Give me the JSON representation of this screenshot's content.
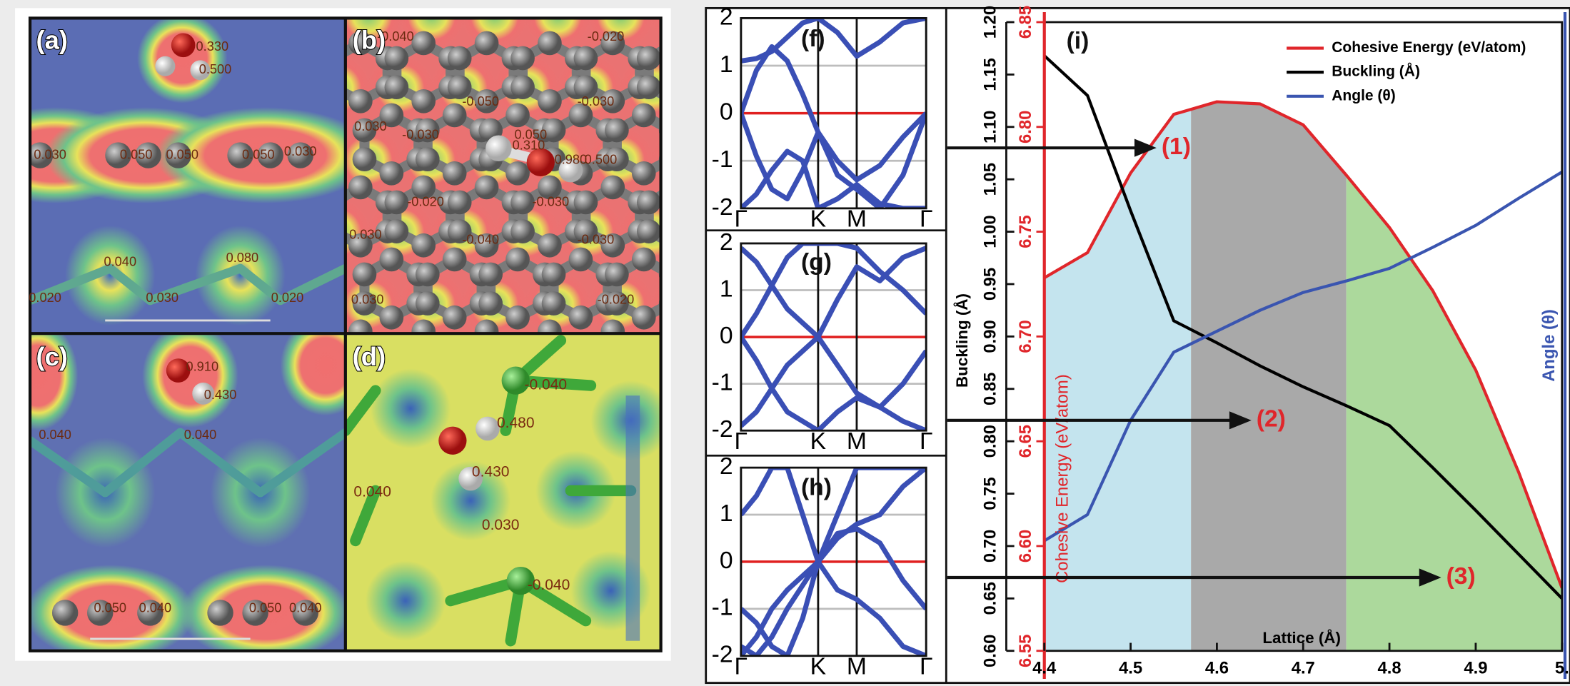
{
  "panels": [
    {
      "label": "(a)",
      "numbers": [
        "0.330",
        "0.500",
        "0.030",
        "0.050",
        "0.050",
        "0.050",
        "0.030",
        "0.040",
        "0.080",
        "0.020",
        "0.030",
        "0.020"
      ]
    },
    {
      "label": "(b)",
      "numbers": [
        "-0.040",
        "-0.020",
        "-0.050",
        "-0.030",
        "0.030",
        "-0.030",
        "0.050",
        "0.310",
        "0.980",
        "0.500",
        "-0.020",
        "-0.030",
        "-0.040",
        "-0.030",
        "0.030",
        "0.030",
        "-0.020"
      ]
    },
    {
      "label": "(c)",
      "numbers": [
        "0.910",
        "0.430",
        "0.040",
        "0.040",
        "0.050",
        "0.040",
        "0.050",
        "0.040"
      ]
    },
    {
      "label": "(d)",
      "numbers": [
        "-0.040",
        "0.480",
        "0.430",
        "0.040",
        "0.030",
        "-0.040"
      ]
    }
  ],
  "chart_data": [
    {
      "type": "line",
      "label": "(f)",
      "x": [
        0,
        0.2,
        0.4,
        0.6,
        0.8,
        1,
        1.25,
        1.5,
        1.8,
        2.1,
        2.4
      ],
      "xlim": [
        0,
        2.4
      ],
      "xticks": [
        {
          "value": 0,
          "label": "Γ"
        },
        {
          "value": 1,
          "label": "K"
        },
        {
          "value": 1.5,
          "label": "M"
        },
        {
          "value": 2.4,
          "label": "Γ"
        }
      ],
      "ylim": [
        -2,
        2
      ],
      "yticks": [
        -2,
        -1,
        0,
        1,
        2
      ],
      "grid": true,
      "zero_line_color": "#e02020",
      "series": [
        {
          "color": "#3a4fb5",
          "values": [
            0,
            -0.9,
            -1.6,
            -1.8,
            -1.2,
            -0.4,
            -1.0,
            -1.4,
            -1.1,
            -0.5,
            0
          ]
        },
        {
          "color": "#3a4fb5",
          "values": [
            0,
            0.9,
            1.4,
            1.1,
            0.4,
            -0.4,
            -1.3,
            -1.6,
            -2,
            -1.3,
            0
          ]
        },
        {
          "color": "#3a4fb5",
          "values": [
            1.1,
            1.15,
            1.3,
            1.6,
            1.9,
            2,
            1.7,
            1.2,
            1.5,
            1.9,
            2
          ]
        },
        {
          "color": "#3a4fb5",
          "values": [
            -2,
            -1.7,
            -1.2,
            -0.8,
            -1.0,
            -2,
            -1.8,
            -1.5,
            -1.9,
            -2,
            -2
          ]
        }
      ]
    },
    {
      "type": "line",
      "label": "(g)",
      "x": [
        0,
        0.2,
        0.4,
        0.6,
        0.8,
        1,
        1.25,
        1.5,
        1.8,
        2.1,
        2.4
      ],
      "xlim": [
        0,
        2.4
      ],
      "xticks": [
        {
          "value": 0,
          "label": "Γ"
        },
        {
          "value": 1,
          "label": "K"
        },
        {
          "value": 1.5,
          "label": "M"
        },
        {
          "value": 2.4,
          "label": "Γ"
        }
      ],
      "ylim": [
        -2,
        2
      ],
      "yticks": [
        -2,
        -1,
        0,
        1,
        2
      ],
      "grid": true,
      "zero_line_color": "#e02020",
      "series": [
        {
          "color": "#3a4fb5",
          "values": [
            1.9,
            1.6,
            1.1,
            0.6,
            0.3,
            0,
            -0.6,
            -1.2,
            -1.5,
            -1.0,
            -0.3
          ]
        },
        {
          "color": "#3a4fb5",
          "values": [
            -1.9,
            -1.6,
            -1.1,
            -0.6,
            -0.3,
            0,
            0.8,
            1.5,
            1.2,
            1.7,
            1.9
          ]
        },
        {
          "color": "#3a4fb5",
          "values": [
            0,
            -0.5,
            -1.1,
            -1.6,
            -1.8,
            -2,
            -1.6,
            -1.3,
            -1.5,
            -1.8,
            -2
          ]
        },
        {
          "color": "#3a4fb5",
          "values": [
            0,
            0.5,
            1.1,
            1.7,
            2,
            2,
            2,
            1.9,
            1.4,
            1.0,
            0.5
          ]
        }
      ]
    },
    {
      "type": "line",
      "label": "(h)",
      "x": [
        0,
        0.2,
        0.4,
        0.6,
        0.8,
        1,
        1.25,
        1.5,
        1.8,
        2.1,
        2.4
      ],
      "xlim": [
        0,
        2.4
      ],
      "xticks": [
        {
          "value": 0,
          "label": "Γ"
        },
        {
          "value": 1,
          "label": "K"
        },
        {
          "value": 1.5,
          "label": "M"
        },
        {
          "value": 2.4,
          "label": "Γ"
        }
      ],
      "ylim": [
        -2,
        2
      ],
      "yticks": [
        -2,
        -1,
        0,
        1,
        2
      ],
      "grid": true,
      "zero_line_color": "#e02020",
      "series": [
        {
          "color": "#3a4fb5",
          "values": [
            -1.0,
            -1.3,
            -1.8,
            -2,
            -1.2,
            0,
            1.0,
            2,
            2,
            2,
            2
          ]
        },
        {
          "color": "#3a4fb5",
          "values": [
            1.0,
            1.4,
            2,
            2,
            1.0,
            0,
            0.6,
            0.7,
            0.4,
            -0.4,
            -1.0
          ]
        },
        {
          "color": "#3a4fb5",
          "values": [
            -1.8,
            -2,
            -1.6,
            -1.0,
            -0.5,
            0,
            -0.6,
            -0.8,
            -1.2,
            -1.8,
            -2
          ]
        },
        {
          "color": "#3a4fb5",
          "values": [
            -2,
            -1.6,
            -1.0,
            -0.6,
            -0.3,
            0,
            0.5,
            0.8,
            1.0,
            1.6,
            2
          ]
        }
      ]
    },
    {
      "type": "line",
      "label": "(i)",
      "x_label": "Lattice (Å)",
      "y_label": "Buckling (Å)",
      "y2_label": "Cohesive Energy (eV/atom)",
      "y3_label": "Angle (θ)",
      "x": [
        4.4,
        4.45,
        4.5,
        4.55,
        4.6,
        4.65,
        4.7,
        4.75,
        4.8,
        4.85,
        4.9,
        4.95,
        5.0
      ],
      "xlim": [
        4.4,
        5.0
      ],
      "xticks": [
        4.4,
        4.5,
        4.6,
        4.7,
        4.8,
        4.9,
        {
          "value": 5.0,
          "label": "5."
        }
      ],
      "ylim": [
        0.6,
        1.2
      ],
      "yticks": [
        {
          "value": 0.6,
          "label": "0.60"
        },
        0.65,
        {
          "value": 0.7,
          "label": "0.70"
        },
        0.75,
        {
          "value": 0.8,
          "label": "0.80"
        },
        0.85,
        {
          "value": 0.9,
          "label": "0.90"
        },
        0.95,
        {
          "value": 1.0,
          "label": "1.00"
        },
        1.05,
        {
          "value": 1.1,
          "label": "1.10"
        },
        1.15,
        {
          "value": 1.2,
          "label": "1.20"
        }
      ],
      "y2lim": [
        6.55,
        6.85
      ],
      "y2ticks": [
        6.55,
        {
          "value": 6.6,
          "label": "6.60"
        },
        6.65,
        {
          "value": 6.7,
          "label": "6.70"
        },
        6.75,
        {
          "value": 6.8,
          "label": "6.80"
        },
        6.85
      ],
      "y3lim": [
        0.6,
        1.2
      ],
      "grid": false,
      "legend": "top-right",
      "regions": [
        {
          "x": [
            4.4,
            4.57
          ],
          "color": "#c4e4ee"
        },
        {
          "x": [
            4.57,
            4.75
          ],
          "color": "#a9a9a9"
        },
        {
          "x": [
            4.75,
            5.0
          ],
          "color": "#acd99c"
        }
      ],
      "series": [
        {
          "name": "Cohesive Energy (eV/atom)",
          "color": "#e0262b",
          "axis": "y2",
          "values": [
            6.728,
            6.74,
            6.778,
            6.806,
            6.812,
            6.811,
            6.801,
            6.777,
            6.752,
            6.722,
            6.684,
            6.635,
            6.58
          ]
        },
        {
          "name": "Buckling (Å)",
          "color": "#000000",
          "values": [
            1.168,
            1.13,
            1.02,
            0.915,
            0.894,
            0.872,
            0.852,
            0.834,
            0.815,
            0.775,
            0.734,
            0.692,
            0.65
          ]
        },
        {
          "name": "Angle (θ)",
          "color": "#3a55b0",
          "axis": "y3",
          "values": [
            0.705,
            0.73,
            0.82,
            0.885,
            0.905,
            0.925,
            0.942,
            0.953,
            0.965,
            0.985,
            1.006,
            1.032,
            1.057
          ]
        }
      ],
      "annotations": [
        {
          "text": "(1)",
          "x": 4.53,
          "y": 1.08
        },
        {
          "text": "(2)",
          "x": 4.64,
          "y": 0.82
        },
        {
          "text": "(3)",
          "x": 4.86,
          "y": 0.67
        }
      ]
    }
  ]
}
